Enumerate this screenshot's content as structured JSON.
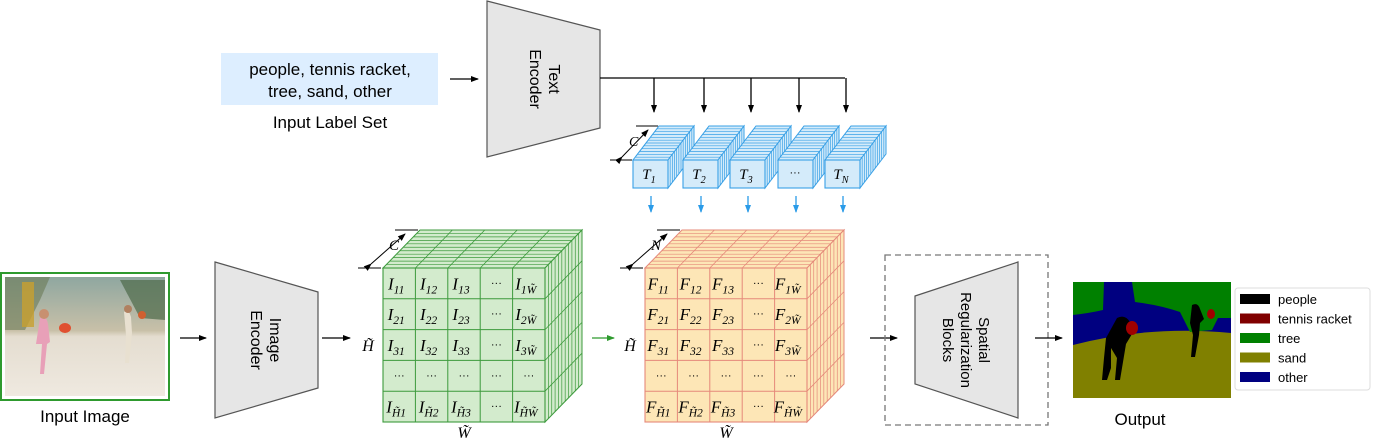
{
  "input_label_set": {
    "lines": [
      "people, tennis racket,",
      "tree, sand, other"
    ],
    "caption": "Input Label Set",
    "box_color": "#ddeeff"
  },
  "text_encoder": {
    "lines": [
      "Text",
      "Encoder"
    ]
  },
  "image_encoder": {
    "lines": [
      "Image",
      "Encoder"
    ]
  },
  "spatial_blocks": {
    "lines": [
      "Spatial",
      "Regularization",
      "Blocks"
    ]
  },
  "input_image": {
    "caption": "Input Image",
    "border_color": "#2e9a2e"
  },
  "text_embeddings": {
    "depth_label": "C",
    "tokens": [
      {
        "base": "T",
        "sub": "1"
      },
      {
        "base": "T",
        "sub": "2"
      },
      {
        "base": "T",
        "sub": "3"
      },
      {
        "base": "···",
        "sub": ""
      },
      {
        "base": "T",
        "sub": "N"
      }
    ],
    "fill": "#d4ebfa",
    "stroke": "#38a0e6"
  },
  "image_features": {
    "depth_label": "C",
    "height_label": "H̃",
    "width_label": "W̃",
    "fill": "#d3ebcd",
    "stroke": "#3c9a3c",
    "cells": [
      [
        [
          "I",
          "11"
        ],
        [
          "I",
          "12"
        ],
        [
          "I",
          "13"
        ],
        [
          "···",
          ""
        ],
        [
          "I",
          "1W̃"
        ]
      ],
      [
        [
          "I",
          "21"
        ],
        [
          "I",
          "22"
        ],
        [
          "I",
          "23"
        ],
        [
          "···",
          ""
        ],
        [
          "I",
          "2W̃"
        ]
      ],
      [
        [
          "I",
          "31"
        ],
        [
          "I",
          "32"
        ],
        [
          "I",
          "33"
        ],
        [
          "···",
          ""
        ],
        [
          "I",
          "3W̃"
        ]
      ],
      [
        [
          "···",
          ""
        ],
        [
          "···",
          ""
        ],
        [
          "···",
          ""
        ],
        [
          "···",
          ""
        ],
        [
          "···",
          ""
        ]
      ],
      [
        [
          "I",
          "H̃1"
        ],
        [
          "I",
          "H̃2"
        ],
        [
          "I",
          "H̃3"
        ],
        [
          "···",
          ""
        ],
        [
          "I",
          "H̃W̃"
        ]
      ]
    ]
  },
  "word_pixel_features": {
    "depth_label": "N",
    "height_label": "H̃",
    "width_label": "W̃",
    "fill": "#fde6b6",
    "stroke": "#e5897a",
    "cells": [
      [
        [
          "F",
          "11"
        ],
        [
          "F",
          "12"
        ],
        [
          "F",
          "13"
        ],
        [
          "···",
          ""
        ],
        [
          "F",
          "1W̃"
        ]
      ],
      [
        [
          "F",
          "21"
        ],
        [
          "F",
          "22"
        ],
        [
          "F",
          "23"
        ],
        [
          "···",
          ""
        ],
        [
          "F",
          "2W̃"
        ]
      ],
      [
        [
          "F",
          "31"
        ],
        [
          "F",
          "32"
        ],
        [
          "F",
          "33"
        ],
        [
          "···",
          ""
        ],
        [
          "F",
          "3W̃"
        ]
      ],
      [
        [
          "···",
          ""
        ],
        [
          "···",
          ""
        ],
        [
          "···",
          ""
        ],
        [
          "···",
          ""
        ],
        [
          "···",
          ""
        ]
      ],
      [
        [
          "F",
          "H̃1"
        ],
        [
          "F",
          "H̃2"
        ],
        [
          "F",
          "H̃3"
        ],
        [
          "···",
          ""
        ],
        [
          "F",
          "H̃W̃"
        ]
      ]
    ]
  },
  "output": {
    "caption": "Output",
    "legend": [
      {
        "label": "people",
        "color": "#000000"
      },
      {
        "label": "tennis racket",
        "color": "#800000"
      },
      {
        "label": "tree",
        "color": "#008000"
      },
      {
        "label": "sand",
        "color": "#808000"
      },
      {
        "label": "other",
        "color": "#000080"
      }
    ]
  }
}
